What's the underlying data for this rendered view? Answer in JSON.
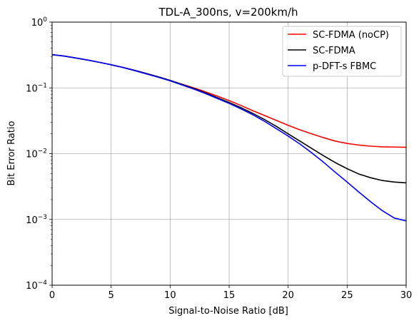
{
  "chart_data": {
    "type": "line",
    "title": "TDL-A_300ns, v=200km/h",
    "xlabel": "Signal-to-Noise Ratio [dB]",
    "ylabel": "Bit Error Ratio",
    "xlim": [
      0,
      30
    ],
    "ylim": [
      0.0001,
      1
    ],
    "yscale": "log",
    "grid": true,
    "legend_position": "top-right",
    "x_ticks": [
      "0",
      "5",
      "10",
      "15",
      "20",
      "25",
      "30"
    ],
    "y_ticks": [
      "10^-4",
      "10^-3",
      "10^-2",
      "10^-1",
      "10^0"
    ],
    "x": [
      0,
      1,
      2,
      3,
      4,
      5,
      6,
      7,
      8,
      9,
      10,
      11,
      12,
      13,
      14,
      15,
      16,
      17,
      18,
      19,
      20,
      21,
      22,
      23,
      24,
      25,
      26,
      27,
      28,
      29,
      30
    ],
    "series": [
      {
        "name": "SC-FDMA (noCP)",
        "color": "#ff0000",
        "values": [
          0.32,
          0.305,
          0.285,
          0.265,
          0.245,
          0.225,
          0.205,
          0.185,
          0.165,
          0.147,
          0.13,
          0.114,
          0.1,
          0.087,
          0.075,
          0.064,
          0.054,
          0.045,
          0.038,
          0.032,
          0.027,
          0.023,
          0.02,
          0.0175,
          0.0155,
          0.0143,
          0.0135,
          0.013,
          0.0127,
          0.0126,
          0.0125
        ]
      },
      {
        "name": "SC-FDMA",
        "color": "#000000",
        "values": [
          0.32,
          0.305,
          0.285,
          0.265,
          0.245,
          0.225,
          0.205,
          0.185,
          0.165,
          0.147,
          0.13,
          0.113,
          0.098,
          0.084,
          0.071,
          0.06,
          0.05,
          0.041,
          0.033,
          0.026,
          0.02,
          0.0155,
          0.012,
          0.0093,
          0.0073,
          0.0059,
          0.0049,
          0.0043,
          0.0039,
          0.0037,
          0.0036
        ]
      },
      {
        "name": "p-DFT-s FBMC",
        "color": "#0000ff",
        "values": [
          0.32,
          0.305,
          0.285,
          0.265,
          0.245,
          0.224,
          0.204,
          0.183,
          0.163,
          0.145,
          0.128,
          0.111,
          0.096,
          0.082,
          0.069,
          0.058,
          0.048,
          0.039,
          0.031,
          0.024,
          0.0185,
          0.014,
          0.0103,
          0.0074,
          0.0052,
          0.0037,
          0.0026,
          0.00185,
          0.00135,
          0.00105,
          0.00095
        ]
      }
    ]
  }
}
